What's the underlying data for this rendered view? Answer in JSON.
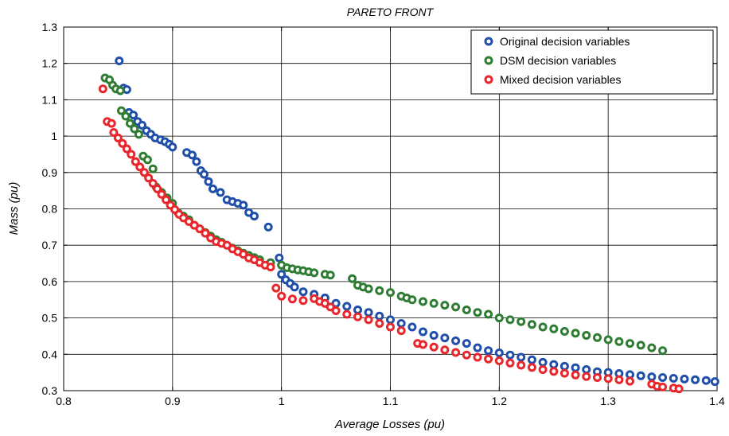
{
  "chart_data": {
    "type": "scatter",
    "title": "PARETO FRONT",
    "xlabel": "Average Losses (pu)",
    "ylabel": "Mass (pu)",
    "xlim": [
      0.8,
      1.4
    ],
    "ylim": [
      0.3,
      1.3
    ],
    "xticks": [
      "0.8",
      "0.9",
      "1",
      "1.1",
      "1.2",
      "1.3",
      "1.4"
    ],
    "yticks": [
      "0.3",
      "0.4",
      "0.5",
      "0.6",
      "0.7",
      "0.8",
      "0.9",
      "1",
      "1.1",
      "1.2",
      "1.3"
    ],
    "grid": true,
    "legend_position": "top-right",
    "series": [
      {
        "name": "Original decision variables",
        "color": "#1f4fa8",
        "points": [
          [
            0.851,
            1.207
          ],
          [
            0.855,
            1.132
          ],
          [
            0.858,
            1.128
          ],
          [
            0.86,
            1.065
          ],
          [
            0.864,
            1.058
          ],
          [
            0.868,
            1.04
          ],
          [
            0.872,
            1.03
          ],
          [
            0.876,
            1.015
          ],
          [
            0.88,
            1.005
          ],
          [
            0.884,
            0.995
          ],
          [
            0.889,
            0.99
          ],
          [
            0.893,
            0.985
          ],
          [
            0.897,
            0.978
          ],
          [
            0.9,
            0.97
          ],
          [
            0.913,
            0.955
          ],
          [
            0.918,
            0.948
          ],
          [
            0.922,
            0.93
          ],
          [
            0.926,
            0.905
          ],
          [
            0.929,
            0.895
          ],
          [
            0.933,
            0.875
          ],
          [
            0.937,
            0.855
          ],
          [
            0.944,
            0.845
          ],
          [
            0.95,
            0.825
          ],
          [
            0.955,
            0.82
          ],
          [
            0.96,
            0.815
          ],
          [
            0.965,
            0.81
          ],
          [
            0.97,
            0.79
          ],
          [
            0.975,
            0.78
          ],
          [
            0.988,
            0.75
          ],
          [
            0.998,
            0.665
          ],
          [
            1.0,
            0.62
          ],
          [
            1.004,
            0.605
          ],
          [
            1.008,
            0.595
          ],
          [
            1.012,
            0.585
          ],
          [
            1.02,
            0.572
          ],
          [
            1.03,
            0.565
          ],
          [
            1.04,
            0.555
          ],
          [
            1.05,
            0.54
          ],
          [
            1.06,
            0.532
          ],
          [
            1.07,
            0.522
          ],
          [
            1.08,
            0.515
          ],
          [
            1.09,
            0.505
          ],
          [
            1.1,
            0.495
          ],
          [
            1.11,
            0.485
          ],
          [
            1.12,
            0.475
          ],
          [
            1.13,
            0.462
          ],
          [
            1.14,
            0.452
          ],
          [
            1.15,
            0.445
          ],
          [
            1.16,
            0.437
          ],
          [
            1.17,
            0.43
          ],
          [
            1.18,
            0.418
          ],
          [
            1.19,
            0.41
          ],
          [
            1.2,
            0.404
          ],
          [
            1.21,
            0.398
          ],
          [
            1.22,
            0.392
          ],
          [
            1.23,
            0.385
          ],
          [
            1.24,
            0.378
          ],
          [
            1.25,
            0.372
          ],
          [
            1.26,
            0.367
          ],
          [
            1.27,
            0.363
          ],
          [
            1.28,
            0.358
          ],
          [
            1.29,
            0.352
          ],
          [
            1.3,
            0.35
          ],
          [
            1.31,
            0.347
          ],
          [
            1.32,
            0.344
          ],
          [
            1.33,
            0.341
          ],
          [
            1.34,
            0.338
          ],
          [
            1.35,
            0.336
          ],
          [
            1.36,
            0.334
          ],
          [
            1.37,
            0.332
          ],
          [
            1.38,
            0.33
          ],
          [
            1.39,
            0.328
          ],
          [
            1.398,
            0.325
          ]
        ]
      },
      {
        "name": "DSM decision variables",
        "color": "#2e7d32",
        "points": [
          [
            0.838,
            1.16
          ],
          [
            0.842,
            1.155
          ],
          [
            0.845,
            1.14
          ],
          [
            0.848,
            1.13
          ],
          [
            0.852,
            1.125
          ],
          [
            0.853,
            1.07
          ],
          [
            0.857,
            1.055
          ],
          [
            0.861,
            1.035
          ],
          [
            0.865,
            1.02
          ],
          [
            0.869,
            1.005
          ],
          [
            0.873,
            0.945
          ],
          [
            0.877,
            0.935
          ],
          [
            0.882,
            0.91
          ],
          [
            0.885,
            0.86
          ],
          [
            0.89,
            0.845
          ],
          [
            0.895,
            0.83
          ],
          [
            0.9,
            0.815
          ],
          [
            0.905,
            0.79
          ],
          [
            0.91,
            0.78
          ],
          [
            0.915,
            0.77
          ],
          [
            0.92,
            0.755
          ],
          [
            0.925,
            0.745
          ],
          [
            0.93,
            0.735
          ],
          [
            0.935,
            0.725
          ],
          [
            0.94,
            0.715
          ],
          [
            0.945,
            0.708
          ],
          [
            0.95,
            0.7
          ],
          [
            0.955,
            0.692
          ],
          [
            0.96,
            0.685
          ],
          [
            0.965,
            0.678
          ],
          [
            0.97,
            0.672
          ],
          [
            0.975,
            0.666
          ],
          [
            0.98,
            0.66
          ],
          [
            0.99,
            0.652
          ],
          [
            1.0,
            0.645
          ],
          [
            1.005,
            0.638
          ],
          [
            1.01,
            0.635
          ],
          [
            1.015,
            0.632
          ],
          [
            1.02,
            0.63
          ],
          [
            1.025,
            0.627
          ],
          [
            1.03,
            0.624
          ],
          [
            1.04,
            0.62
          ],
          [
            1.045,
            0.618
          ],
          [
            1.065,
            0.608
          ],
          [
            1.07,
            0.59
          ],
          [
            1.075,
            0.585
          ],
          [
            1.08,
            0.58
          ],
          [
            1.09,
            0.575
          ],
          [
            1.1,
            0.57
          ],
          [
            1.11,
            0.56
          ],
          [
            1.115,
            0.555
          ],
          [
            1.12,
            0.55
          ],
          [
            1.13,
            0.545
          ],
          [
            1.14,
            0.54
          ],
          [
            1.15,
            0.535
          ],
          [
            1.16,
            0.53
          ],
          [
            1.17,
            0.522
          ],
          [
            1.18,
            0.515
          ],
          [
            1.19,
            0.51
          ],
          [
            1.2,
            0.5
          ],
          [
            1.21,
            0.495
          ],
          [
            1.22,
            0.49
          ],
          [
            1.23,
            0.482
          ],
          [
            1.24,
            0.475
          ],
          [
            1.25,
            0.47
          ],
          [
            1.26,
            0.463
          ],
          [
            1.27,
            0.458
          ],
          [
            1.28,
            0.452
          ],
          [
            1.29,
            0.446
          ],
          [
            1.3,
            0.44
          ],
          [
            1.31,
            0.435
          ],
          [
            1.32,
            0.43
          ],
          [
            1.33,
            0.425
          ],
          [
            1.34,
            0.418
          ],
          [
            1.35,
            0.41
          ]
        ]
      },
      {
        "name": "Mixed decision variables",
        "color": "#e8262b",
        "points": [
          [
            0.836,
            1.13
          ],
          [
            0.84,
            1.04
          ],
          [
            0.844,
            1.035
          ],
          [
            0.846,
            1.01
          ],
          [
            0.85,
            0.995
          ],
          [
            0.854,
            0.98
          ],
          [
            0.858,
            0.965
          ],
          [
            0.862,
            0.95
          ],
          [
            0.866,
            0.93
          ],
          [
            0.87,
            0.915
          ],
          [
            0.874,
            0.9
          ],
          [
            0.878,
            0.885
          ],
          [
            0.882,
            0.87
          ],
          [
            0.886,
            0.855
          ],
          [
            0.89,
            0.84
          ],
          [
            0.894,
            0.825
          ],
          [
            0.898,
            0.81
          ],
          [
            0.902,
            0.798
          ],
          [
            0.906,
            0.785
          ],
          [
            0.91,
            0.775
          ],
          [
            0.915,
            0.765
          ],
          [
            0.92,
            0.755
          ],
          [
            0.925,
            0.745
          ],
          [
            0.93,
            0.733
          ],
          [
            0.935,
            0.72
          ],
          [
            0.94,
            0.71
          ],
          [
            0.945,
            0.705
          ],
          [
            0.95,
            0.7
          ],
          [
            0.955,
            0.69
          ],
          [
            0.96,
            0.682
          ],
          [
            0.965,
            0.675
          ],
          [
            0.97,
            0.665
          ],
          [
            0.975,
            0.66
          ],
          [
            0.98,
            0.652
          ],
          [
            0.985,
            0.645
          ],
          [
            0.99,
            0.64
          ],
          [
            0.995,
            0.582
          ],
          [
            1.0,
            0.56
          ],
          [
            1.01,
            0.552
          ],
          [
            1.02,
            0.548
          ],
          [
            1.03,
            0.553
          ],
          [
            1.035,
            0.545
          ],
          [
            1.04,
            0.54
          ],
          [
            1.045,
            0.53
          ],
          [
            1.05,
            0.52
          ],
          [
            1.06,
            0.51
          ],
          [
            1.07,
            0.503
          ],
          [
            1.08,
            0.495
          ],
          [
            1.09,
            0.485
          ],
          [
            1.1,
            0.475
          ],
          [
            1.11,
            0.465
          ],
          [
            1.125,
            0.43
          ],
          [
            1.13,
            0.427
          ],
          [
            1.14,
            0.42
          ],
          [
            1.15,
            0.412
          ],
          [
            1.16,
            0.405
          ],
          [
            1.17,
            0.398
          ],
          [
            1.18,
            0.392
          ],
          [
            1.19,
            0.387
          ],
          [
            1.2,
            0.382
          ],
          [
            1.21,
            0.376
          ],
          [
            1.22,
            0.37
          ],
          [
            1.23,
            0.364
          ],
          [
            1.24,
            0.358
          ],
          [
            1.25,
            0.353
          ],
          [
            1.26,
            0.348
          ],
          [
            1.27,
            0.343
          ],
          [
            1.28,
            0.339
          ],
          [
            1.29,
            0.336
          ],
          [
            1.3,
            0.333
          ],
          [
            1.31,
            0.33
          ],
          [
            1.32,
            0.326
          ],
          [
            1.34,
            0.318
          ],
          [
            1.345,
            0.312
          ],
          [
            1.35,
            0.31
          ],
          [
            1.36,
            0.307
          ],
          [
            1.365,
            0.305
          ]
        ]
      }
    ]
  }
}
